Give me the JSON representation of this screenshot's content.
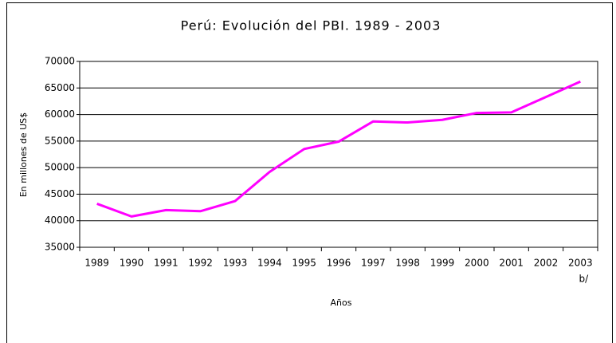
{
  "chart_data": {
    "type": "line",
    "title": "Perú: Evolución del PBI. 1989 - 2003",
    "x_label": "Años",
    "y_label": "En millones de US$",
    "categories": [
      "1989",
      "1990",
      "1991",
      "1992",
      "1993",
      "1994",
      "1995",
      "1996",
      "1997",
      "1998",
      "1999",
      "2000",
      "2001",
      "2002",
      "2003"
    ],
    "category_note": "b/",
    "series": [
      {
        "name": "PBI",
        "color": "#ff00ff",
        "values": [
          43200,
          40800,
          42000,
          41800,
          43700,
          49200,
          53500,
          54900,
          58700,
          58500,
          59000,
          60300,
          60400,
          63300,
          66200
        ]
      }
    ],
    "ylim": [
      35000,
      70000
    ],
    "yticks": [
      35000,
      40000,
      45000,
      50000,
      55000,
      60000,
      65000,
      70000
    ],
    "grid": true
  }
}
